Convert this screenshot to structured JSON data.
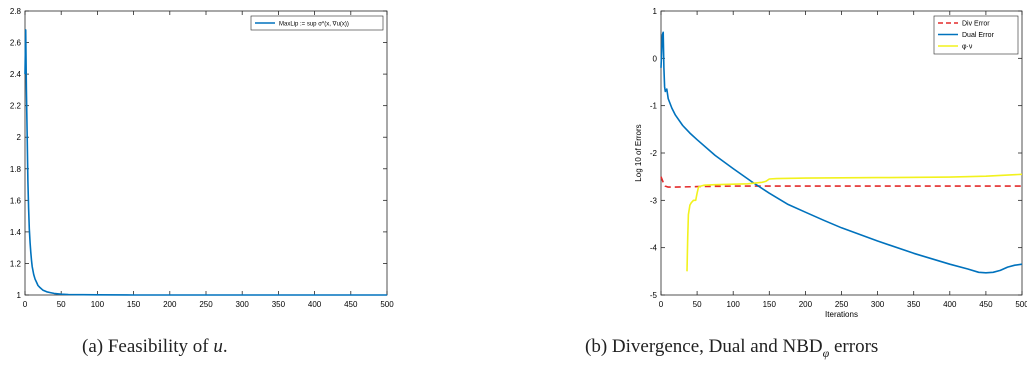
{
  "charts": [
    {
      "type": "line",
      "xlim": [
        0,
        500
      ],
      "ylim": [
        1,
        2.8
      ],
      "xticks": [
        "0",
        "50",
        "100",
        "150",
        "200",
        "250",
        "300",
        "350",
        "400",
        "450",
        "500"
      ],
      "yticks": [
        "1",
        "1.2",
        "1.4",
        "1.6",
        "1.8",
        "2",
        "2.2",
        "2.4",
        "2.6",
        "2.8"
      ],
      "xlabel": "",
      "ylabel": "",
      "legend_position": "top-right",
      "series": [
        {
          "name": "MaxLip := sup σ*(x, ∇u(x))",
          "color": "#0072BD",
          "x": [
            0,
            1,
            2,
            3,
            4,
            5,
            6,
            7,
            8,
            9,
            10,
            12,
            14,
            16,
            18,
            20,
            25,
            30,
            35,
            40,
            50,
            60,
            80,
            100,
            150,
            200,
            300,
            400,
            500
          ],
          "y": [
            2.4,
            2.68,
            2.3,
            2.0,
            1.72,
            1.55,
            1.42,
            1.33,
            1.27,
            1.22,
            1.18,
            1.13,
            1.1,
            1.08,
            1.06,
            1.05,
            1.03,
            1.02,
            1.015,
            1.01,
            1.005,
            1.003,
            1.002,
            1.001,
            1.0,
            1.0,
            1.0,
            1.0,
            1.0
          ]
        }
      ]
    },
    {
      "type": "line",
      "xlim": [
        0,
        500
      ],
      "ylim": [
        -5,
        1
      ],
      "xticks": [
        "0",
        "50",
        "100",
        "150",
        "200",
        "250",
        "300",
        "350",
        "400",
        "450",
        "500"
      ],
      "yticks": [
        "-5",
        "-4",
        "-3",
        "-2",
        "-1",
        "0",
        "1"
      ],
      "xlabel": "Iterations",
      "ylabel": "Log 10 of Errors",
      "legend_position": "top-right",
      "series": [
        {
          "name": "Div Error",
          "color": "#E32B2B",
          "dash": "6,4",
          "x": [
            0,
            3,
            6,
            10,
            20,
            50,
            100,
            200,
            300,
            400,
            500
          ],
          "y": [
            -2.5,
            -2.62,
            -2.7,
            -2.72,
            -2.72,
            -2.71,
            -2.7,
            -2.7,
            -2.7,
            -2.7,
            -2.7
          ]
        },
        {
          "name": "Dual Error",
          "color": "#0072BD",
          "x": [
            0,
            2,
            3,
            4,
            5,
            6,
            8,
            10,
            15,
            20,
            30,
            40,
            50,
            75,
            100,
            125,
            150,
            175,
            200,
            225,
            250,
            300,
            350,
            400,
            425,
            440,
            450,
            460,
            470,
            480,
            490,
            500
          ],
          "y": [
            -0.2,
            0.5,
            0.55,
            -0.2,
            -0.6,
            -0.7,
            -0.65,
            -0.85,
            -1.05,
            -1.2,
            -1.42,
            -1.58,
            -1.72,
            -2.05,
            -2.33,
            -2.6,
            -2.85,
            -3.08,
            -3.25,
            -3.42,
            -3.58,
            -3.86,
            -4.12,
            -4.35,
            -4.45,
            -4.52,
            -4.53,
            -4.52,
            -4.48,
            -4.41,
            -4.37,
            -4.35
          ]
        },
        {
          "name": "φ·ν",
          "color": "#F2F21D",
          "x": [
            36,
            37,
            38,
            40,
            42,
            45,
            48,
            50,
            52,
            55,
            60,
            75,
            100,
            120,
            140,
            145,
            150,
            160,
            200,
            300,
            400,
            450,
            500
          ],
          "y": [
            -4.5,
            -3.8,
            -3.3,
            -3.1,
            -3.05,
            -3.0,
            -3.0,
            -2.85,
            -2.72,
            -2.7,
            -2.68,
            -2.67,
            -2.66,
            -2.65,
            -2.62,
            -2.6,
            -2.55,
            -2.54,
            -2.53,
            -2.52,
            -2.51,
            -2.49,
            -2.45
          ]
        }
      ]
    }
  ],
  "captions": {
    "a_prefix": "(a) Feasibility of ",
    "a_var": "u",
    "a_suffix": ".",
    "b_prefix": "(b) Divergence, Dual and NBD",
    "b_sub": "φ",
    "b_suffix": " errors"
  }
}
